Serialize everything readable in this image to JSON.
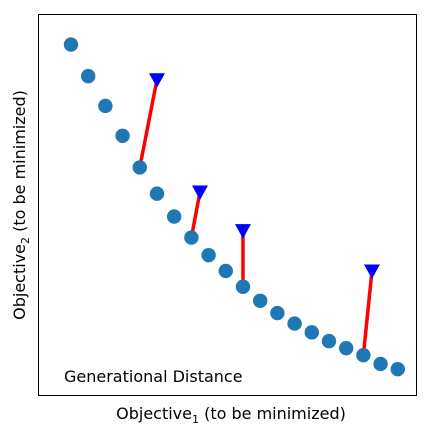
{
  "chart_data": {
    "type": "scatter",
    "title": "",
    "xlabel": "Objective",
    "xlabel_sub": "1",
    "xlabel_suffix": " (to be minimized)",
    "ylabel": "Objective",
    "ylabel_sub": "2",
    "ylabel_suffix": " (to be minimized)",
    "annotation": "Generational Distance",
    "xlim": [
      0,
      10
    ],
    "ylim": [
      0,
      10
    ],
    "grid": false,
    "ticks_visible": false,
    "colors": {
      "front": "#1f77b4",
      "solutions": "#0000ff",
      "distance": "#ff0000"
    },
    "front_points": [
      {
        "x": 0.45,
        "y": 9.6
      },
      {
        "x": 0.95,
        "y": 8.7
      },
      {
        "x": 1.45,
        "y": 7.85
      },
      {
        "x": 1.95,
        "y": 7.0
      },
      {
        "x": 2.45,
        "y": 6.1
      },
      {
        "x": 2.95,
        "y": 5.35
      },
      {
        "x": 3.45,
        "y": 4.7
      },
      {
        "x": 3.95,
        "y": 4.1
      },
      {
        "x": 4.45,
        "y": 3.6
      },
      {
        "x": 4.95,
        "y": 3.15
      },
      {
        "x": 5.45,
        "y": 2.7
      },
      {
        "x": 5.95,
        "y": 2.3
      },
      {
        "x": 6.45,
        "y": 1.95
      },
      {
        "x": 6.95,
        "y": 1.65
      },
      {
        "x": 7.45,
        "y": 1.4
      },
      {
        "x": 7.95,
        "y": 1.15
      },
      {
        "x": 8.45,
        "y": 0.95
      },
      {
        "x": 8.95,
        "y": 0.75
      },
      {
        "x": 9.45,
        "y": 0.5
      },
      {
        "x": 9.95,
        "y": 0.35
      }
    ],
    "solutions": [
      {
        "x": 2.95,
        "y": 8.6
      },
      {
        "x": 4.2,
        "y": 5.4
      },
      {
        "x": 5.45,
        "y": 4.3
      },
      {
        "x": 9.2,
        "y": 3.15
      }
    ],
    "distances": [
      {
        "from": {
          "x": 2.95,
          "y": 8.6
        },
        "to": {
          "x": 2.45,
          "y": 6.1
        }
      },
      {
        "from": {
          "x": 4.2,
          "y": 5.4
        },
        "to": {
          "x": 3.95,
          "y": 4.1
        }
      },
      {
        "from": {
          "x": 5.45,
          "y": 4.3
        },
        "to": {
          "x": 5.45,
          "y": 2.7
        }
      },
      {
        "from": {
          "x": 9.2,
          "y": 3.15
        },
        "to": {
          "x": 8.95,
          "y": 0.75
        }
      }
    ]
  }
}
